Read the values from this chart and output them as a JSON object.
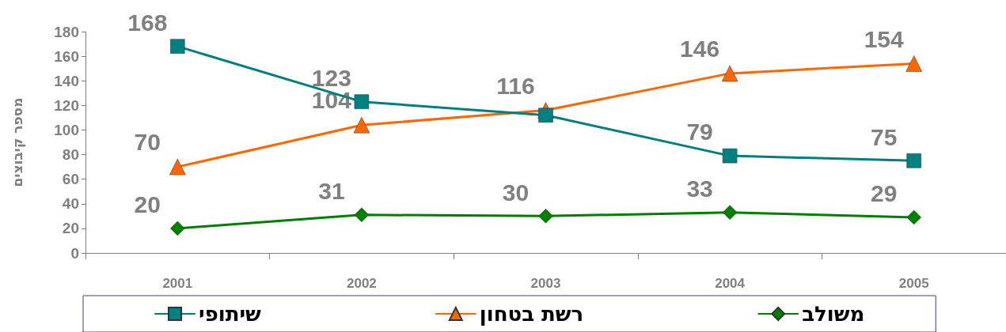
{
  "chart_data": {
    "type": "line",
    "ylabel": "מספר קיבוצים",
    "categories": [
      "2001",
      "2002",
      "2003",
      "2004",
      "2005"
    ],
    "series": [
      {
        "name": "שיתופי",
        "color": "#008080",
        "marker": "square",
        "values": [
          168,
          123,
          112,
          79,
          75
        ],
        "value_labels": [
          "168",
          "123",
          null,
          "79",
          "75"
        ]
      },
      {
        "name": "רשת בטחון",
        "color": "#ff6600",
        "marker": "triangle",
        "values": [
          70,
          104,
          116,
          146,
          154
        ],
        "value_labels": [
          "70",
          "104",
          "116",
          "146",
          "154"
        ]
      },
      {
        "name": "משולב",
        "color": "#008000",
        "marker": "diamond",
        "values": [
          20,
          31,
          30,
          33,
          29
        ],
        "value_labels": [
          "20",
          "31",
          "30",
          "33",
          "29"
        ]
      }
    ],
    "ylim": [
      0,
      180
    ],
    "yticks": [
      0,
      20,
      40,
      60,
      80,
      100,
      120,
      140,
      160,
      180
    ],
    "grid": false,
    "legend": "bottom",
    "line_style": "solid"
  }
}
